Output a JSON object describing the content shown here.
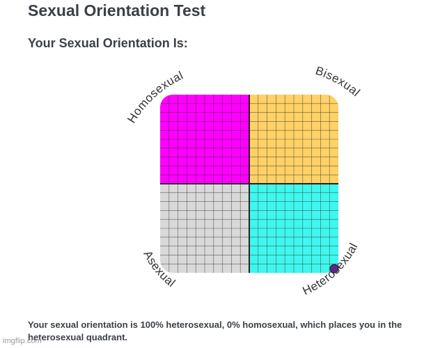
{
  "page": {
    "title": "Sexual Orientation Test",
    "subtitle": "Your Sexual Orientation Is:"
  },
  "compass": {
    "labels": {
      "top_left": "Homosexual",
      "top_right": "Bisexual",
      "bottom_left": "Asexual",
      "bottom_right": "Heterosexual"
    },
    "quadrant_colors": {
      "top_left": "#ff00ff",
      "top_right": "#ffd166",
      "bottom_left": "#d9d9d9",
      "bottom_right": "#3ff7ee"
    },
    "marker": {
      "heterosexual_percent": 100,
      "homosexual_percent": 0,
      "color": "#5b2a86"
    }
  },
  "result": {
    "text": "Your sexual orientation is 100% heterosexual, 0% homosexual, which places you in the heterosexual quadrant."
  },
  "watermark": "imgflip.com"
}
